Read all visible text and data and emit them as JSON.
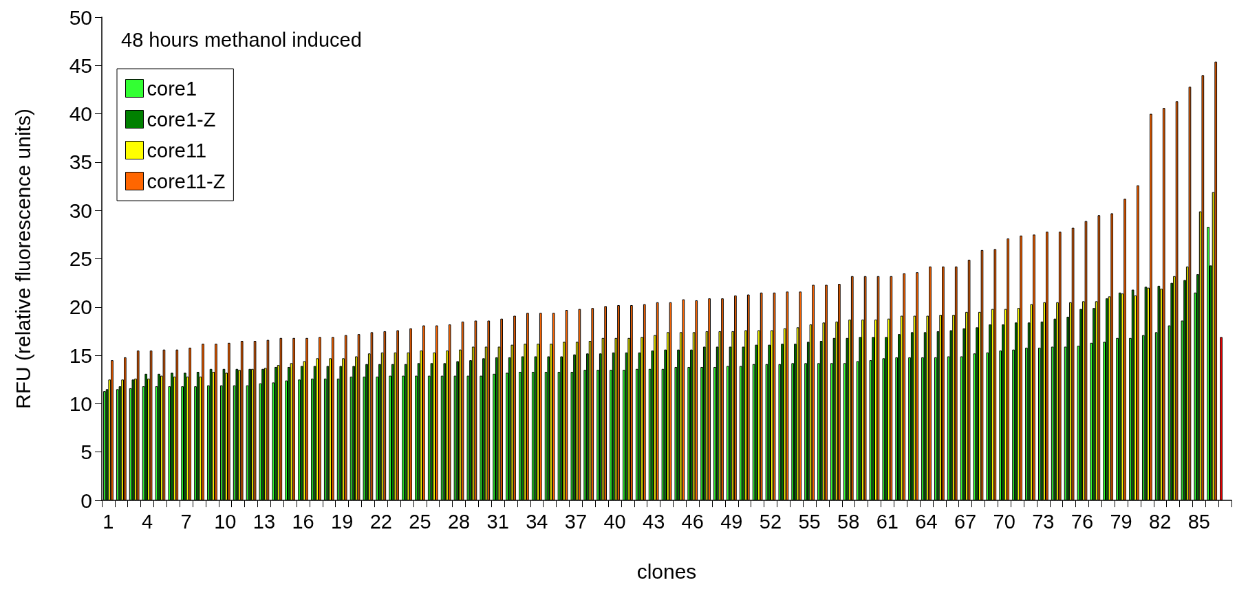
{
  "chart_data": {
    "type": "bar",
    "xlabel": "clones",
    "ylabel": "RFU (relative fluorescence units)",
    "annotations": [
      "48 hours methanol induced"
    ],
    "categories": [
      "1",
      null,
      null,
      "4",
      null,
      null,
      "7",
      null,
      null,
      "10",
      null,
      null,
      "13",
      null,
      null,
      "16",
      null,
      null,
      "19",
      null,
      null,
      "22",
      null,
      null,
      "25",
      null,
      null,
      "28",
      null,
      null,
      "31",
      null,
      null,
      "34",
      null,
      null,
      "37",
      null,
      null,
      "40",
      null,
      null,
      "43",
      null,
      null,
      "46",
      null,
      null,
      "49",
      null,
      null,
      "52",
      null,
      null,
      "55",
      null,
      null,
      "58",
      null,
      null,
      "61",
      null,
      null,
      "64",
      null,
      null,
      "67",
      null,
      null,
      "70",
      null,
      null,
      "73",
      null,
      null,
      "76",
      null,
      null,
      "79",
      null,
      null,
      "82",
      null,
      null,
      "85",
      null,
      null
    ],
    "series": [
      {
        "name": "core1",
        "colors": [
          "#33ff33",
          "#33ff33",
          "#33ff33",
          "#33ff33",
          "#33ff33",
          "#33ff33",
          "#33ff33",
          "#33ff33",
          "#33ff33",
          "#33ff33",
          "#33ff33",
          "#33ff33",
          "#33ff33",
          "#33ff33",
          "#33ff33",
          "#33ff33",
          "#33ff33",
          "#33ff33",
          "#33ff33",
          "#33ff33",
          "#33ff33",
          "#33ff33",
          "#33ff33",
          "#33ff33",
          "#33ff33",
          "#33ff33",
          "#33ff33",
          "#33ff33",
          "#33ff33",
          "#33ff33",
          "#33ff33",
          "#33ff33",
          "#33ff33",
          "#33ff33",
          "#33ff33",
          "#33ff33",
          "#33ff33",
          "#33ff33",
          "#33ff33",
          "#33ff33",
          "#33ff33",
          "#33ff33",
          "#33ff33",
          "#33ff33",
          "#33ff33",
          "#33ff33",
          "#33ff33",
          "#33ff33",
          "#33ff33",
          "#33ff33",
          "#33ff33",
          "#33ff33",
          "#33ff33",
          "#33ff33",
          "#33ff33",
          "#33ff33",
          "#33ff33",
          "#33ff33",
          "#33ff33",
          "#33ff33",
          "#33ff33",
          "#33ff33",
          "#33ff33",
          "#33ff33",
          "#33ff33",
          "#33ff33",
          "#33ff33",
          "#33ff33",
          "#33ff33",
          "#33ff33",
          "#33ff33",
          "#33ff33",
          "#33ff33",
          "#33ff33",
          "#33ff33",
          "#33ff33",
          "#33ff33",
          "#33ff33",
          "#33ff33",
          "#33ff33",
          "#33ff33",
          "#33ff33",
          "#33ff33",
          "#33ff33",
          "#33ff33",
          "#33ff33",
          "#ff0000"
        ],
        "values": [
          11.3,
          11.5,
          11.6,
          11.8,
          11.8,
          11.8,
          11.8,
          11.8,
          11.9,
          11.9,
          11.9,
          11.9,
          12.1,
          12.2,
          12.4,
          12.5,
          12.6,
          12.6,
          12.6,
          12.8,
          12.8,
          12.8,
          12.9,
          12.9,
          12.9,
          12.9,
          12.9,
          12.9,
          12.9,
          12.9,
          13.1,
          13.2,
          13.3,
          13.3,
          13.3,
          13.3,
          13.3,
          13.5,
          13.5,
          13.5,
          13.5,
          13.6,
          13.6,
          13.6,
          13.8,
          13.8,
          13.8,
          13.8,
          13.9,
          13.9,
          14.1,
          14.1,
          14.1,
          14.2,
          14.2,
          14.2,
          14.2,
          14.2,
          14.4,
          14.5,
          14.7,
          14.8,
          14.8,
          14.8,
          14.8,
          14.9,
          14.9,
          15.2,
          15.3,
          15.5,
          15.6,
          15.8,
          15.8,
          15.9,
          15.9,
          16.0,
          16.3,
          16.4,
          16.8,
          16.8,
          17.1,
          17.4,
          18.1,
          18.6,
          21.5,
          28.3,
          16.9
        ]
      },
      {
        "name": "core1-Z",
        "color": "#008000",
        "values": [
          11.5,
          11.8,
          12.5,
          13.1,
          13.1,
          13.2,
          13.2,
          13.3,
          13.6,
          13.6,
          13.6,
          13.6,
          13.6,
          13.8,
          13.8,
          13.9,
          13.9,
          13.9,
          13.9,
          13.9,
          14.1,
          14.1,
          14.1,
          14.1,
          14.2,
          14.2,
          14.2,
          14.4,
          14.5,
          14.7,
          14.8,
          14.8,
          14.9,
          14.9,
          14.9,
          14.9,
          15.1,
          15.2,
          15.2,
          15.3,
          15.3,
          15.3,
          15.5,
          15.6,
          15.6,
          15.6,
          15.9,
          15.9,
          15.9,
          15.9,
          16.1,
          16.1,
          16.2,
          16.2,
          16.4,
          16.5,
          16.8,
          16.8,
          16.9,
          16.9,
          16.9,
          17.2,
          17.4,
          17.4,
          17.5,
          17.6,
          17.8,
          17.9,
          18.2,
          18.2,
          18.4,
          18.4,
          18.5,
          18.8,
          19.0,
          19.8,
          19.9,
          20.9,
          21.5,
          21.8,
          22.1,
          22.2,
          22.5,
          22.8,
          23.4,
          24.3,
          null
        ]
      },
      {
        "name": "core11",
        "color": "#ffff00",
        "values": [
          12.5,
          12.5,
          12.6,
          12.6,
          12.9,
          12.8,
          12.8,
          12.8,
          13.3,
          13.2,
          13.5,
          13.6,
          13.7,
          14.0,
          14.2,
          14.4,
          14.7,
          14.7,
          14.7,
          14.9,
          15.2,
          15.3,
          15.3,
          15.3,
          15.5,
          15.3,
          15.5,
          15.6,
          15.9,
          15.9,
          15.9,
          16.1,
          16.2,
          16.2,
          16.2,
          16.4,
          16.4,
          16.5,
          16.8,
          16.8,
          16.8,
          16.9,
          17.1,
          17.4,
          17.4,
          17.4,
          17.5,
          17.5,
          17.5,
          17.6,
          17.6,
          17.6,
          17.8,
          17.9,
          18.2,
          18.4,
          18.5,
          18.7,
          18.7,
          18.7,
          18.8,
          19.1,
          19.1,
          19.1,
          19.2,
          19.2,
          19.5,
          19.5,
          19.8,
          19.8,
          19.9,
          20.3,
          20.5,
          20.5,
          20.5,
          20.6,
          20.6,
          21.1,
          21.4,
          21.2,
          22.0,
          21.9,
          23.2,
          24.2,
          29.9,
          31.9,
          null
        ]
      },
      {
        "name": "core11-Z",
        "color": "#ff6600",
        "values": [
          14.5,
          14.8,
          15.5,
          15.5,
          15.6,
          15.6,
          15.8,
          16.2,
          16.2,
          16.3,
          16.5,
          16.5,
          16.6,
          16.8,
          16.8,
          16.8,
          16.9,
          16.9,
          17.1,
          17.2,
          17.4,
          17.5,
          17.6,
          17.8,
          18.1,
          18.1,
          18.2,
          18.5,
          18.6,
          18.6,
          18.8,
          19.1,
          19.4,
          19.4,
          19.4,
          19.7,
          19.8,
          19.9,
          20.1,
          20.2,
          20.2,
          20.3,
          20.5,
          20.5,
          20.8,
          20.7,
          20.9,
          20.9,
          21.2,
          21.3,
          21.5,
          21.5,
          21.6,
          21.6,
          22.3,
          22.3,
          22.4,
          23.2,
          23.2,
          23.2,
          23.2,
          23.5,
          23.6,
          24.2,
          24.2,
          24.2,
          24.9,
          25.9,
          26.0,
          27.1,
          27.4,
          27.5,
          27.8,
          27.8,
          28.2,
          28.9,
          29.5,
          29.7,
          31.2,
          32.6,
          40.0,
          40.6,
          41.3,
          42.8,
          44.0,
          45.4,
          null
        ]
      }
    ],
    "ylim": [
      0,
      50
    ],
    "yticks": [
      0,
      5,
      10,
      15,
      20,
      25,
      30,
      35,
      40,
      45,
      50
    ],
    "grid": false,
    "legend": "top left"
  }
}
